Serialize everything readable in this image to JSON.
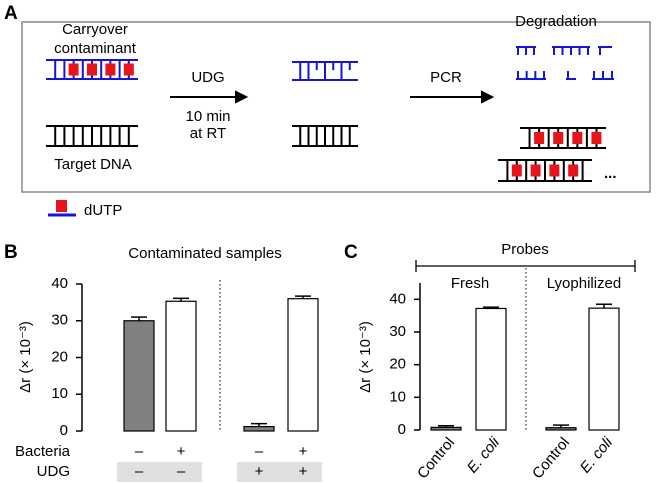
{
  "panel_a": {
    "label": "A",
    "contaminant": [
      "Carryover",
      "contaminant"
    ],
    "target": "Target DNA",
    "step1": "UDG",
    "step1_detail": [
      "10 min",
      "at RT"
    ],
    "step2": "PCR",
    "outcome": "Degradation",
    "more": "...",
    "legend": "dUTP"
  },
  "chart_data": [
    {
      "type": "bar",
      "label": "B",
      "title": "Contaminated samples",
      "y_label": "Δr (× 10⁻³)",
      "values": [
        30,
        35.3,
        1.2,
        36
      ],
      "errors": [
        1.0,
        0.8,
        0.8,
        0.7
      ],
      "colors": [
        "#808080",
        "#ffffff",
        "#808080",
        "#ffffff"
      ],
      "ylim": [
        0,
        40
      ],
      "yticks": [
        0,
        10,
        20,
        30,
        40
      ],
      "rows": [
        {
          "name": "Bacteria",
          "values": [
            "–",
            "+",
            "–",
            "+"
          ]
        },
        {
          "name": "UDG",
          "values": [
            "–",
            "–",
            "+",
            "+"
          ]
        }
      ]
    },
    {
      "type": "bar",
      "label": "C",
      "title": "Probes",
      "y_label": "Δr (× 10⁻³)",
      "categories": [
        "Control",
        "E. coli",
        "Control",
        "E. coli"
      ],
      "groups": [
        "Fresh",
        "Lyophilized"
      ],
      "values": [
        0.8,
        37.2,
        0.7,
        37.3
      ],
      "errors": [
        0.5,
        0.4,
        0.8,
        1.2
      ],
      "colors": [
        "#808080",
        "#ffffff",
        "#808080",
        "#ffffff"
      ],
      "ylim": [
        0,
        45
      ],
      "yticks": [
        0,
        10,
        20,
        30,
        40
      ]
    }
  ]
}
